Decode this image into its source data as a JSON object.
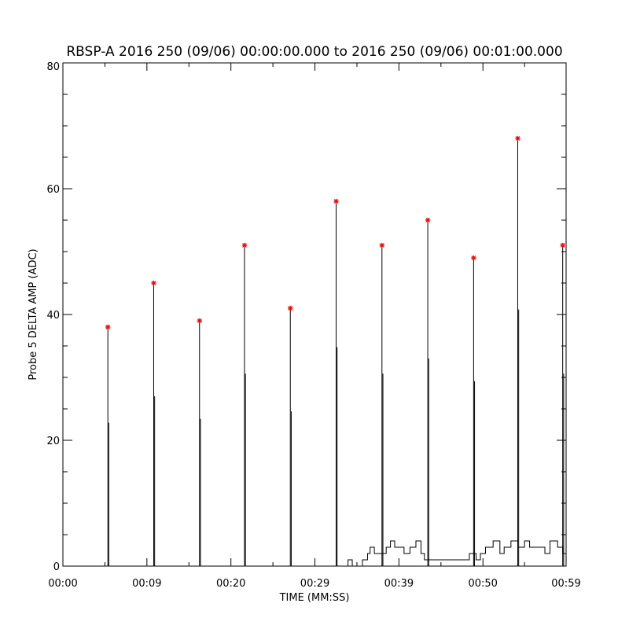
{
  "chart_data": {
    "type": "line",
    "title": "RBSP-A 2016 250 (09/06) 00:00:00.000 to 2016 250 (09/06) 00:01:00.000",
    "xlabel": "TIME (MM:SS)",
    "ylabel": "Probe 5 DELTA AMP (ADC)",
    "xlim": [
      0,
      59.3
    ],
    "ylim": [
      0,
      80
    ],
    "grid": false,
    "x_ticks": [
      {
        "value": 0,
        "label": "00:00"
      },
      {
        "value": 9.9,
        "label": "00:09"
      },
      {
        "value": 19.8,
        "label": "00:20"
      },
      {
        "value": 29.7,
        "label": "00:29"
      },
      {
        "value": 39.6,
        "label": "00:39"
      },
      {
        "value": 49.5,
        "label": "00:50"
      },
      {
        "value": 59.3,
        "label": "00:59"
      }
    ],
    "y_ticks": [
      {
        "value": 0,
        "label": "0"
      },
      {
        "value": 20,
        "label": "20"
      },
      {
        "value": 40,
        "label": "40"
      },
      {
        "value": 60,
        "label": "60"
      },
      {
        "value": 80,
        "label": "80"
      }
    ],
    "peaks": {
      "name": "",
      "color": "#ff0000",
      "marker": "asterisk",
      "x": [
        5.3,
        10.7,
        16.1,
        21.4,
        26.8,
        32.2,
        37.6,
        43.0,
        48.4,
        53.6,
        58.9
      ],
      "y": [
        38,
        45,
        39,
        51,
        41,
        58,
        51,
        55,
        49,
        68,
        51
      ]
    },
    "baseline": {
      "x": [
        0,
        33.1,
        33.6,
        34.1,
        35.3,
        35.9,
        36.2,
        36.7,
        38.1,
        38.6,
        39.1,
        40.2,
        40.9,
        41.6,
        42.2,
        42.6,
        44.2,
        47.3,
        47.9,
        48.7,
        49.2,
        49.8,
        50.7,
        51.5,
        52.0,
        52.8,
        53.6,
        54.4,
        55.0,
        56.8,
        57.4,
        58.3,
        58.9,
        59.3
      ],
      "y": [
        0,
        0,
        1,
        0,
        1,
        2,
        3,
        2,
        3,
        4,
        3,
        2,
        3,
        4,
        2,
        1,
        1,
        1,
        2,
        1,
        2,
        3,
        4,
        2,
        3,
        4,
        3,
        4,
        3,
        2,
        4,
        3,
        2,
        2
      ]
    }
  }
}
